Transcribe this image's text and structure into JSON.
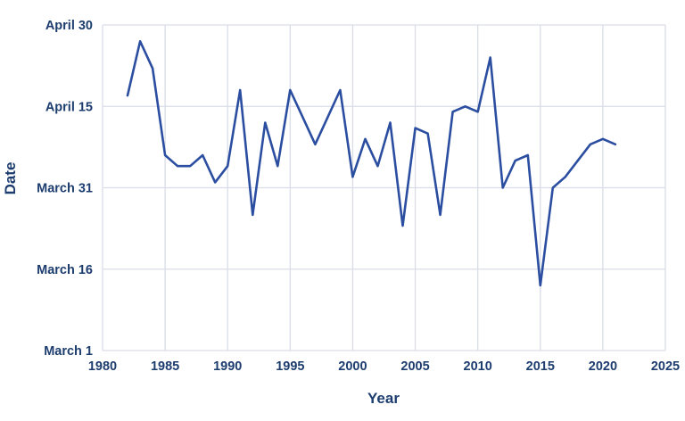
{
  "colors": {
    "text": "#1d3d6f",
    "line": "#2b4ea0",
    "grid": "#dadde7",
    "background": "#ffffff"
  },
  "chart_data": {
    "type": "line",
    "title": "",
    "xlabel": "Year",
    "ylabel": "Date",
    "grid": true,
    "legend": "none",
    "xlim": [
      1980,
      2025
    ],
    "ylim": [
      0,
      60
    ],
    "x_ticks": [
      1980,
      1985,
      1990,
      1995,
      2000,
      2005,
      2010,
      2015,
      2020,
      2025
    ],
    "y_ticks": [
      "March 1",
      "March 16",
      "March 31",
      "April 15",
      "April 30"
    ],
    "y_tick_values": [
      0,
      15,
      30,
      45,
      60
    ],
    "y_value_unit": "days after March 1",
    "series": [
      {
        "name": "date",
        "color": "#2b4ea0",
        "points": [
          {
            "year": 1982,
            "value": 47,
            "date": "April 17"
          },
          {
            "year": 1983,
            "value": 57,
            "date": "April 27"
          },
          {
            "year": 1984,
            "value": 52,
            "date": "April 22"
          },
          {
            "year": 1985,
            "value": 36,
            "date": "April 6"
          },
          {
            "year": 1986,
            "value": 34,
            "date": "April 4"
          },
          {
            "year": 1987,
            "value": 34,
            "date": "April 4"
          },
          {
            "year": 1988,
            "value": 36,
            "date": "April 6"
          },
          {
            "year": 1989,
            "value": 31,
            "date": "April 1"
          },
          {
            "year": 1990,
            "value": 34,
            "date": "April 4"
          },
          {
            "year": 1991,
            "value": 48,
            "date": "April 18"
          },
          {
            "year": 1992,
            "value": 25,
            "date": "March 26"
          },
          {
            "year": 1993,
            "value": 42,
            "date": "April 12"
          },
          {
            "year": 1994,
            "value": 34,
            "date": "April 4"
          },
          {
            "year": 1995,
            "value": 48,
            "date": "April 18"
          },
          {
            "year": 1996,
            "value": 43,
            "date": "April 13"
          },
          {
            "year": 1997,
            "value": 38,
            "date": "April 8"
          },
          {
            "year": 1998,
            "value": 43,
            "date": "April 13"
          },
          {
            "year": 1999,
            "value": 48,
            "date": "April 18"
          },
          {
            "year": 2000,
            "value": 32,
            "date": "April 2"
          },
          {
            "year": 2001,
            "value": 39,
            "date": "April 9"
          },
          {
            "year": 2002,
            "value": 34,
            "date": "April 4"
          },
          {
            "year": 2003,
            "value": 42,
            "date": "April 12"
          },
          {
            "year": 2004,
            "value": 23,
            "date": "March 24"
          },
          {
            "year": 2005,
            "value": 41,
            "date": "April 11"
          },
          {
            "year": 2006,
            "value": 40,
            "date": "April 10"
          },
          {
            "year": 2007,
            "value": 25,
            "date": "March 26"
          },
          {
            "year": 2008,
            "value": 44,
            "date": "April 14"
          },
          {
            "year": 2009,
            "value": 45,
            "date": "April 15"
          },
          {
            "year": 2010,
            "value": 44,
            "date": "April 14"
          },
          {
            "year": 2011,
            "value": 54,
            "date": "April 24"
          },
          {
            "year": 2012,
            "value": 30,
            "date": "March 31"
          },
          {
            "year": 2013,
            "value": 35,
            "date": "April 5"
          },
          {
            "year": 2014,
            "value": 36,
            "date": "April 6"
          },
          {
            "year": 2015,
            "value": 12,
            "date": "March 13"
          },
          {
            "year": 2016,
            "value": 30,
            "date": "March 31"
          },
          {
            "year": 2017,
            "value": 32,
            "date": "April 2"
          },
          {
            "year": 2018,
            "value": 35,
            "date": "April 5"
          },
          {
            "year": 2019,
            "value": 38,
            "date": "April 8"
          },
          {
            "year": 2020,
            "value": 39,
            "date": "April 9"
          },
          {
            "year": 2021,
            "value": 38,
            "date": "April 8"
          }
        ]
      }
    ]
  }
}
